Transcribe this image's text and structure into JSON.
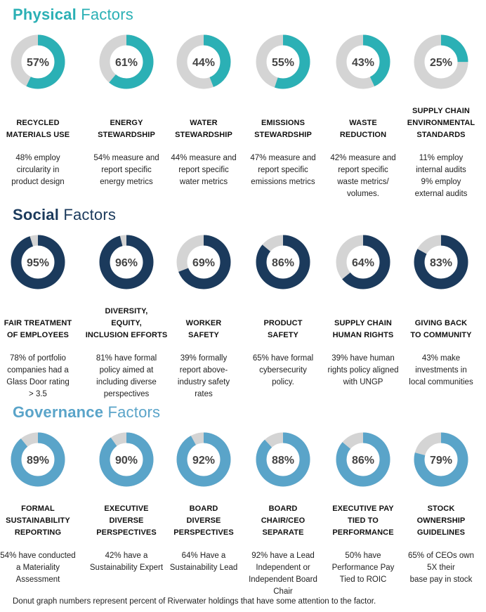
{
  "colors": {
    "physical": "#2bb0b5",
    "social": "#1b3a5c",
    "governance": "#5aa4c9",
    "track": "#d4d4d4"
  },
  "sections": [
    {
      "key": "physical",
      "title_bold": "Physical",
      "title_rest": " Factors",
      "color": "#2bb0b5",
      "items": [
        {
          "percent": 57,
          "pct_label": "57%",
          "label_lines": [
            "RECYCLED",
            "MATERIALS USE"
          ],
          "desc_lines": [
            "48% employ",
            "circularity in",
            "product design"
          ]
        },
        {
          "percent": 61,
          "pct_label": "61%",
          "label_lines": [
            "ENERGY",
            "STEWARDSHIP"
          ],
          "desc_lines": [
            "54% measure and",
            "report specific",
            "energy metrics"
          ]
        },
        {
          "percent": 44,
          "pct_label": "44%",
          "label_lines": [
            "WATER",
            "STEWARDSHIP"
          ],
          "desc_lines": [
            "44% measure and",
            "report specific",
            "water metrics"
          ]
        },
        {
          "percent": 55,
          "pct_label": "55%",
          "label_lines": [
            "EMISSIONS",
            "STEWARDSHIP"
          ],
          "desc_lines": [
            "47% measure and",
            "report specific",
            "emissions metrics"
          ]
        },
        {
          "percent": 43,
          "pct_label": "43%",
          "label_lines": [
            "WASTE",
            "REDUCTION"
          ],
          "desc_lines": [
            "42% measure and",
            "report specific",
            "waste metrics/",
            "volumes."
          ]
        },
        {
          "percent": 25,
          "pct_label": "25%",
          "label_lines": [
            "SUPPLY CHAIN",
            "ENVIRONMENTAL",
            "STANDARDS"
          ],
          "desc_lines": [
            "11% employ",
            "internal audits",
            "9% employ",
            "external audits"
          ]
        }
      ]
    },
    {
      "key": "social",
      "title_bold": "Social",
      "title_rest": " Factors",
      "color": "#1b3a5c",
      "items": [
        {
          "percent": 95,
          "pct_label": "95%",
          "label_lines": [
            "FAIR TREATMENT",
            "OF EMPLOYEES"
          ],
          "desc_lines": [
            "78% of portfolio",
            "companies had a",
            "Glass Door rating",
            "> 3.5"
          ]
        },
        {
          "percent": 96,
          "pct_label": "96%",
          "label_lines": [
            "DIVERSITY,",
            "EQUITY,",
            "INCLUSION EFFORTS"
          ],
          "desc_lines": [
            "81% have formal",
            "policy aimed at",
            "including diverse",
            "perspectives"
          ]
        },
        {
          "percent": 69,
          "pct_label": "69%",
          "label_lines": [
            "WORKER",
            "SAFETY"
          ],
          "desc_lines": [
            "39% formally",
            "report above-",
            "industry safety",
            "rates"
          ]
        },
        {
          "percent": 86,
          "pct_label": "86%",
          "label_lines": [
            "PRODUCT",
            "SAFETY"
          ],
          "desc_lines": [
            "65% have formal",
            "cybersecurity",
            "policy."
          ]
        },
        {
          "percent": 64,
          "pct_label": "64%",
          "label_lines": [
            "SUPPLY CHAIN",
            "HUMAN RIGHTS"
          ],
          "desc_lines": [
            "39% have human",
            "rights policy aligned",
            "with UNGP"
          ]
        },
        {
          "percent": 83,
          "pct_label": "83%",
          "label_lines": [
            "GIVING BACK",
            "TO COMMUNITY"
          ],
          "desc_lines": [
            "43% make",
            "investments in",
            "local communities"
          ]
        }
      ]
    },
    {
      "key": "governance",
      "title_bold": "Governance",
      "title_rest": " Factors",
      "color": "#5aa4c9",
      "items": [
        {
          "percent": 89,
          "pct_label": "89%",
          "label_lines": [
            "FORMAL",
            "SUSTAINABILITY",
            "REPORTING"
          ],
          "desc_lines": [
            "54% have conducted",
            "a Materiality",
            "Assessment"
          ]
        },
        {
          "percent": 90,
          "pct_label": "90%",
          "label_lines": [
            "EXECUTIVE",
            "DIVERSE",
            "PERSPECTIVES"
          ],
          "desc_lines": [
            "42% have a",
            "Sustainability Expert"
          ]
        },
        {
          "percent": 92,
          "pct_label": "92%",
          "label_lines": [
            "BOARD",
            "DIVERSE",
            "PERSPECTIVES"
          ],
          "desc_lines": [
            "64% Have a",
            "Sustainability Lead"
          ]
        },
        {
          "percent": 88,
          "pct_label": "88%",
          "label_lines": [
            "BOARD",
            "CHAIR/CEO",
            "SEPARATE"
          ],
          "desc_lines": [
            "92% have a Lead",
            "Independent or",
            "Independent Board",
            "Chair"
          ]
        },
        {
          "percent": 86,
          "pct_label": "86%",
          "label_lines": [
            "EXECUTIVE PAY",
            "TIED TO",
            "PERFORMANCE"
          ],
          "desc_lines": [
            "50% have",
            "Performance Pay",
            "Tied to ROIC"
          ]
        },
        {
          "percent": 79,
          "pct_label": "79%",
          "label_lines": [
            "STOCK",
            "OWNERSHIP",
            "GUIDELINES"
          ],
          "desc_lines": [
            "65% of CEOs own",
            "5X their",
            "base pay in stock"
          ]
        }
      ]
    }
  ],
  "footnote": "Donut graph numbers represent percent of Riverwater holdings that have some attention to the factor.",
  "chart_data": [
    {
      "type": "pie",
      "title": "Physical Factors",
      "categories": [
        "RECYCLED MATERIALS USE",
        "ENERGY STEWARDSHIP",
        "WATER STEWARDSHIP",
        "EMISSIONS STEWARDSHIP",
        "WASTE REDUCTION",
        "SUPPLY CHAIN ENVIRONMENTAL STANDARDS"
      ],
      "values": [
        57,
        61,
        44,
        55,
        43,
        25
      ]
    },
    {
      "type": "pie",
      "title": "Social Factors",
      "categories": [
        "FAIR TREATMENT OF EMPLOYEES",
        "DIVERSITY, EQUITY, INCLUSION EFFORTS",
        "WORKER SAFETY",
        "PRODUCT SAFETY",
        "SUPPLY CHAIN HUMAN RIGHTS",
        "GIVING BACK TO COMMUNITY"
      ],
      "values": [
        95,
        96,
        69,
        86,
        64,
        83
      ]
    },
    {
      "type": "pie",
      "title": "Governance Factors",
      "categories": [
        "FORMAL SUSTAINABILITY REPORTING",
        "EXECUTIVE DIVERSE PERSPECTIVES",
        "BOARD DIVERSE PERSPECTIVES",
        "BOARD CHAIR/CEO SEPARATE",
        "EXECUTIVE PAY TIED TO PERFORMANCE",
        "STOCK OWNERSHIP GUIDELINES"
      ],
      "values": [
        89,
        90,
        92,
        88,
        86,
        79
      ]
    }
  ]
}
